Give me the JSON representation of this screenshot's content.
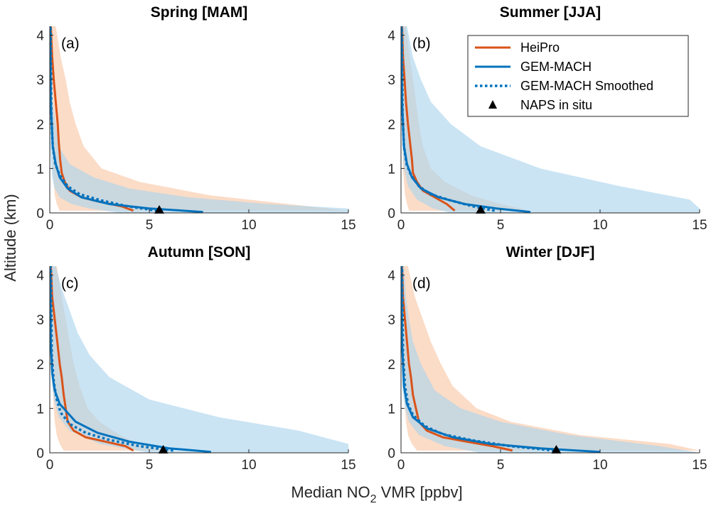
{
  "figure": {
    "ylabel": "Altitude (km)",
    "xlabel_pre": "Median NO",
    "xlabel_sub": "2",
    "xlabel_post": " VMR [ppbv]"
  },
  "legend": {
    "placement": "top-right of panel (b)",
    "entries": [
      {
        "label": "HeiPro",
        "color": "#D95319",
        "style": "solid"
      },
      {
        "label": "GEM-MACH",
        "color": "#0072BD",
        "style": "solid"
      },
      {
        "label": "GEM-MACH Smoothed",
        "color": "#0072BD",
        "style": "dotted"
      },
      {
        "label": "NAPS in situ",
        "color": "#000000",
        "style": "triangle-marker"
      }
    ]
  },
  "colors": {
    "heipro": "#D95319",
    "gemmach": "#0072BD",
    "heipro_band": "#F8C7A5",
    "gemmach_band": "#A9D3EE"
  },
  "chart_data": [
    {
      "type": "line",
      "panel": "a",
      "letter": "(a)",
      "title": "Spring [MAM]",
      "xlim": [
        0,
        15
      ],
      "ylim": [
        0,
        4.2
      ],
      "xticks": [
        0,
        5,
        10,
        15
      ],
      "yticks": [
        0,
        1,
        2,
        3,
        4
      ],
      "grid": false,
      "series": [
        {
          "name": "HeiPro",
          "x": [
            4.2,
            3.6,
            2.5,
            1.6,
            1.0,
            0.75,
            0.6,
            0.52,
            0.45,
            0.4,
            0.3,
            0.2,
            0.12,
            0.05
          ],
          "y": [
            0.05,
            0.15,
            0.25,
            0.35,
            0.5,
            0.7,
            0.9,
            1.2,
            1.6,
            2.0,
            2.5,
            3.0,
            3.5,
            4.2
          ]
        },
        {
          "name": "GEM-MACH",
          "x": [
            7.7,
            5.0,
            3.0,
            1.6,
            0.9,
            0.5,
            0.3,
            0.15,
            0.05,
            0.02
          ],
          "y": [
            0.02,
            0.1,
            0.2,
            0.35,
            0.55,
            0.8,
            1.1,
            1.5,
            2.5,
            4.2
          ]
        },
        {
          "name": "GEM-MACH Smoothed",
          "x": [
            5.4,
            3.9,
            2.6,
            1.5,
            0.9,
            0.5,
            0.28,
            0.15,
            0.08,
            0.04
          ],
          "y": [
            0.05,
            0.15,
            0.28,
            0.42,
            0.6,
            0.85,
            1.1,
            1.5,
            2.2,
            4.2
          ]
        },
        {
          "name": "NAPS in situ",
          "x": [
            5.5
          ],
          "y": [
            0
          ]
        }
      ],
      "bands": [
        {
          "series": "HeiPro",
          "y": [
            0.05,
            0.2,
            0.4,
            0.7,
            1.0,
            1.5,
            2.0,
            2.5,
            3.0,
            3.5,
            4.2
          ],
          "lower": [
            0.5,
            0.35,
            0.25,
            0.2,
            0.15,
            0.1,
            0.08,
            0.05,
            0.03,
            0.02,
            0.01
          ],
          "upper": [
            15,
            12,
            8,
            4.5,
            2.6,
            1.7,
            1.3,
            1.0,
            0.8,
            0.55,
            0.3
          ]
        },
        {
          "series": "GEM-MACH",
          "y": [
            0.0,
            0.1,
            0.2,
            0.35,
            0.55,
            0.8,
            1.1,
            1.5,
            2.5,
            4.2
          ],
          "lower": [
            3.5,
            2.0,
            1.1,
            0.5,
            0.25,
            0.12,
            0.06,
            0.03,
            0.01,
            0.0
          ],
          "upper": [
            15,
            15,
            11,
            7,
            4.0,
            2.2,
            1.0,
            0.45,
            0.15,
            0.05
          ]
        }
      ]
    },
    {
      "type": "line",
      "panel": "b",
      "letter": "(b)",
      "title": "Summer [JJA]",
      "xlim": [
        0,
        15
      ],
      "ylim": [
        0,
        4.2
      ],
      "xticks": [
        0,
        5,
        10,
        15
      ],
      "yticks": [
        0,
        1,
        2,
        3,
        4
      ],
      "grid": false,
      "series": [
        {
          "name": "HeiPro",
          "x": [
            2.7,
            2.3,
            1.7,
            1.1,
            0.8,
            0.6,
            0.55,
            0.45,
            0.35,
            0.25,
            0.18,
            0.1,
            0.05
          ],
          "y": [
            0.05,
            0.2,
            0.35,
            0.5,
            0.7,
            0.9,
            1.2,
            1.6,
            2.0,
            2.5,
            3.0,
            3.5,
            4.2
          ]
        },
        {
          "name": "GEM-MACH",
          "x": [
            6.5,
            4.8,
            3.2,
            1.9,
            1.0,
            0.55,
            0.3,
            0.15,
            0.05,
            0.02
          ],
          "y": [
            0.02,
            0.1,
            0.2,
            0.35,
            0.55,
            0.8,
            1.1,
            1.5,
            2.5,
            4.2
          ]
        },
        {
          "name": "GEM-MACH Smoothed",
          "x": [
            4.7,
            3.6,
            2.5,
            1.5,
            0.9,
            0.5,
            0.28,
            0.15,
            0.08,
            0.04
          ],
          "y": [
            0.05,
            0.15,
            0.28,
            0.42,
            0.6,
            0.85,
            1.1,
            1.5,
            2.2,
            4.2
          ]
        },
        {
          "name": "NAPS in situ",
          "x": [
            4.0
          ],
          "y": [
            0
          ]
        }
      ],
      "bands": [
        {
          "series": "HeiPro",
          "y": [
            0.05,
            0.2,
            0.4,
            0.7,
            1.0,
            1.5,
            2.0,
            2.5,
            3.0,
            3.5,
            4.2
          ],
          "lower": [
            0.4,
            0.3,
            0.2,
            0.15,
            0.1,
            0.08,
            0.06,
            0.04,
            0.03,
            0.02,
            0.01
          ],
          "upper": [
            6.5,
            5.0,
            3.5,
            2.2,
            1.5,
            1.1,
            0.9,
            0.75,
            0.6,
            0.45,
            0.25
          ]
        },
        {
          "series": "GEM-MACH",
          "y": [
            0.0,
            0.1,
            0.3,
            0.6,
            1.0,
            1.5,
            2.0,
            2.5,
            3.0,
            3.5,
            4.2
          ],
          "lower": [
            2.5,
            1.6,
            0.8,
            0.35,
            0.15,
            0.06,
            0.03,
            0.02,
            0.01,
            0.0,
            0.0
          ],
          "upper": [
            15,
            15,
            14.5,
            11,
            7.0,
            4.0,
            2.5,
            1.5,
            1.0,
            0.6,
            0.3
          ]
        }
      ]
    },
    {
      "type": "line",
      "panel": "c",
      "letter": "(c)",
      "title": "Autumn [SON]",
      "xlim": [
        0,
        15
      ],
      "ylim": [
        0,
        4.2
      ],
      "xticks": [
        0,
        5,
        10,
        15
      ],
      "yticks": [
        0,
        1,
        2,
        3,
        4
      ],
      "grid": false,
      "series": [
        {
          "name": "HeiPro",
          "x": [
            4.2,
            3.8,
            2.8,
            1.8,
            1.2,
            0.9,
            0.8,
            0.7,
            0.6,
            0.5,
            0.38,
            0.25,
            0.12,
            0.05
          ],
          "y": [
            0.05,
            0.15,
            0.25,
            0.35,
            0.5,
            0.7,
            1.0,
            1.3,
            1.7,
            2.0,
            2.5,
            3.0,
            3.5,
            4.2
          ]
        },
        {
          "name": "GEM-MACH",
          "x": [
            8.1,
            6.0,
            4.0,
            2.4,
            1.3,
            0.5,
            0.25,
            0.12,
            0.05,
            0.02
          ],
          "y": [
            0.02,
            0.1,
            0.25,
            0.45,
            0.7,
            1.1,
            1.4,
            1.8,
            2.5,
            4.2
          ]
        },
        {
          "name": "GEM-MACH Smoothed",
          "x": [
            6.2,
            4.5,
            2.9,
            1.8,
            1.0,
            0.55,
            0.35,
            0.2,
            0.1,
            0.05
          ],
          "y": [
            0.05,
            0.15,
            0.3,
            0.45,
            0.65,
            0.9,
            1.2,
            1.6,
            2.2,
            4.2
          ]
        },
        {
          "name": "NAPS in situ",
          "x": [
            5.7
          ],
          "y": [
            0
          ]
        }
      ],
      "bands": [
        {
          "series": "HeiPro",
          "y": [
            0.05,
            0.2,
            0.4,
            0.7,
            1.0,
            1.5,
            2.0,
            2.5,
            3.0,
            3.5,
            4.2
          ],
          "lower": [
            0.7,
            0.5,
            0.35,
            0.25,
            0.2,
            0.15,
            0.1,
            0.07,
            0.05,
            0.03,
            0.01
          ],
          "upper": [
            6.0,
            4.5,
            3.5,
            2.5,
            1.9,
            1.5,
            1.2,
            1.0,
            0.8,
            0.6,
            0.35
          ]
        },
        {
          "series": "GEM-MACH",
          "y": [
            0.0,
            0.2,
            0.5,
            0.8,
            1.2,
            1.7,
            2.2,
            2.7,
            3.2,
            3.7,
            4.2
          ],
          "lower": [
            5.0,
            2.5,
            1.0,
            0.45,
            0.2,
            0.08,
            0.04,
            0.02,
            0.01,
            0.0,
            0.0
          ],
          "upper": [
            15,
            15,
            12.5,
            8.5,
            5.0,
            3.0,
            2.0,
            1.4,
            1.0,
            0.6,
            0.3
          ]
        }
      ]
    },
    {
      "type": "line",
      "panel": "d",
      "letter": "(d)",
      "title": "Winter [DJF]",
      "xlim": [
        0,
        15
      ],
      "ylim": [
        0,
        4.2
      ],
      "xticks": [
        0,
        5,
        10,
        15
      ],
      "yticks": [
        0,
        1,
        2,
        3,
        4
      ],
      "grid": false,
      "series": [
        {
          "name": "HeiPro",
          "x": [
            5.6,
            4.6,
            3.3,
            2.1,
            1.3,
            0.9,
            0.75,
            0.6,
            0.5,
            0.4,
            0.3,
            0.2,
            0.1,
            0.05
          ],
          "y": [
            0.05,
            0.15,
            0.25,
            0.35,
            0.5,
            0.7,
            1.0,
            1.3,
            1.7,
            2.0,
            2.5,
            3.0,
            3.5,
            4.2
          ]
        },
        {
          "name": "GEM-MACH",
          "x": [
            10.0,
            7.0,
            4.5,
            2.6,
            1.3,
            0.6,
            0.3,
            0.15,
            0.05,
            0.02
          ],
          "y": [
            0.02,
            0.1,
            0.2,
            0.35,
            0.55,
            0.8,
            1.1,
            1.5,
            2.5,
            4.2
          ]
        },
        {
          "name": "GEM-MACH Smoothed",
          "x": [
            7.7,
            5.5,
            3.6,
            2.1,
            1.2,
            0.6,
            0.35,
            0.2,
            0.1,
            0.05
          ],
          "y": [
            0.05,
            0.15,
            0.28,
            0.42,
            0.6,
            0.85,
            1.1,
            1.5,
            2.2,
            4.2
          ]
        },
        {
          "name": "NAPS in situ",
          "x": [
            7.8
          ],
          "y": [
            0
          ]
        }
      ],
      "bands": [
        {
          "series": "HeiPro",
          "y": [
            0.05,
            0.2,
            0.4,
            0.7,
            1.0,
            1.5,
            2.0,
            2.5,
            3.0,
            3.5,
            4.2
          ],
          "lower": [
            0.8,
            0.55,
            0.35,
            0.25,
            0.2,
            0.15,
            0.1,
            0.08,
            0.05,
            0.03,
            0.01
          ],
          "upper": [
            15,
            13.5,
            9.0,
            5.5,
            3.8,
            2.6,
            2.0,
            1.5,
            1.1,
            0.7,
            0.35
          ]
        },
        {
          "series": "GEM-MACH",
          "y": [
            0.0,
            0.15,
            0.4,
            0.7,
            1.0,
            1.4,
            2.0,
            2.5,
            3.0,
            3.5,
            4.2
          ],
          "lower": [
            4.0,
            2.2,
            0.9,
            0.4,
            0.2,
            0.08,
            0.04,
            0.02,
            0.01,
            0.0,
            0.0
          ],
          "upper": [
            15,
            13.0,
            8.5,
            5.0,
            3.0,
            1.7,
            1.0,
            0.6,
            0.4,
            0.25,
            0.15
          ]
        }
      ]
    }
  ]
}
